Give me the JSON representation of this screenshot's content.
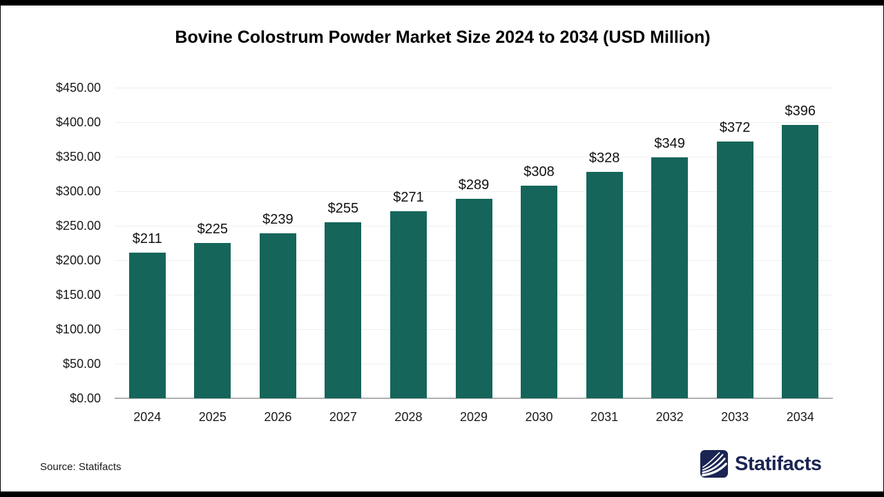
{
  "title": "Bovine Colostrum Powder Market Size 2024 to 2034 (USD Million)",
  "source": {
    "label": "Source: Statifacts"
  },
  "brand": {
    "name": "Statifacts",
    "color": "#1B2553",
    "icon": "statifacts-waves-icon"
  },
  "chart_data": {
    "type": "bar",
    "title": "Bovine Colostrum Powder Market Size 2024 to 2034 (USD Million)",
    "categories": [
      "2024",
      "2025",
      "2026",
      "2027",
      "2028",
      "2029",
      "2030",
      "2031",
      "2032",
      "2033",
      "2034"
    ],
    "values": [
      211,
      225,
      239,
      255,
      271,
      289,
      308,
      328,
      349,
      372,
      396
    ],
    "value_prefix": "$",
    "xlabel": "",
    "ylabel": "",
    "ylim": [
      0,
      450
    ],
    "ytick_step": 50,
    "ytick_labels": [
      "$0.00",
      "$50.00",
      "$100.00",
      "$150.00",
      "$200.00",
      "$250.00",
      "$300.00",
      "$350.00",
      "$400.00",
      "$450.00"
    ],
    "grid": true,
    "legend": "none",
    "bar_color": "#15655A",
    "gridline_color": "#EFEFEF",
    "axisline_color": "#AFAFAF",
    "text_color": "#111111"
  }
}
